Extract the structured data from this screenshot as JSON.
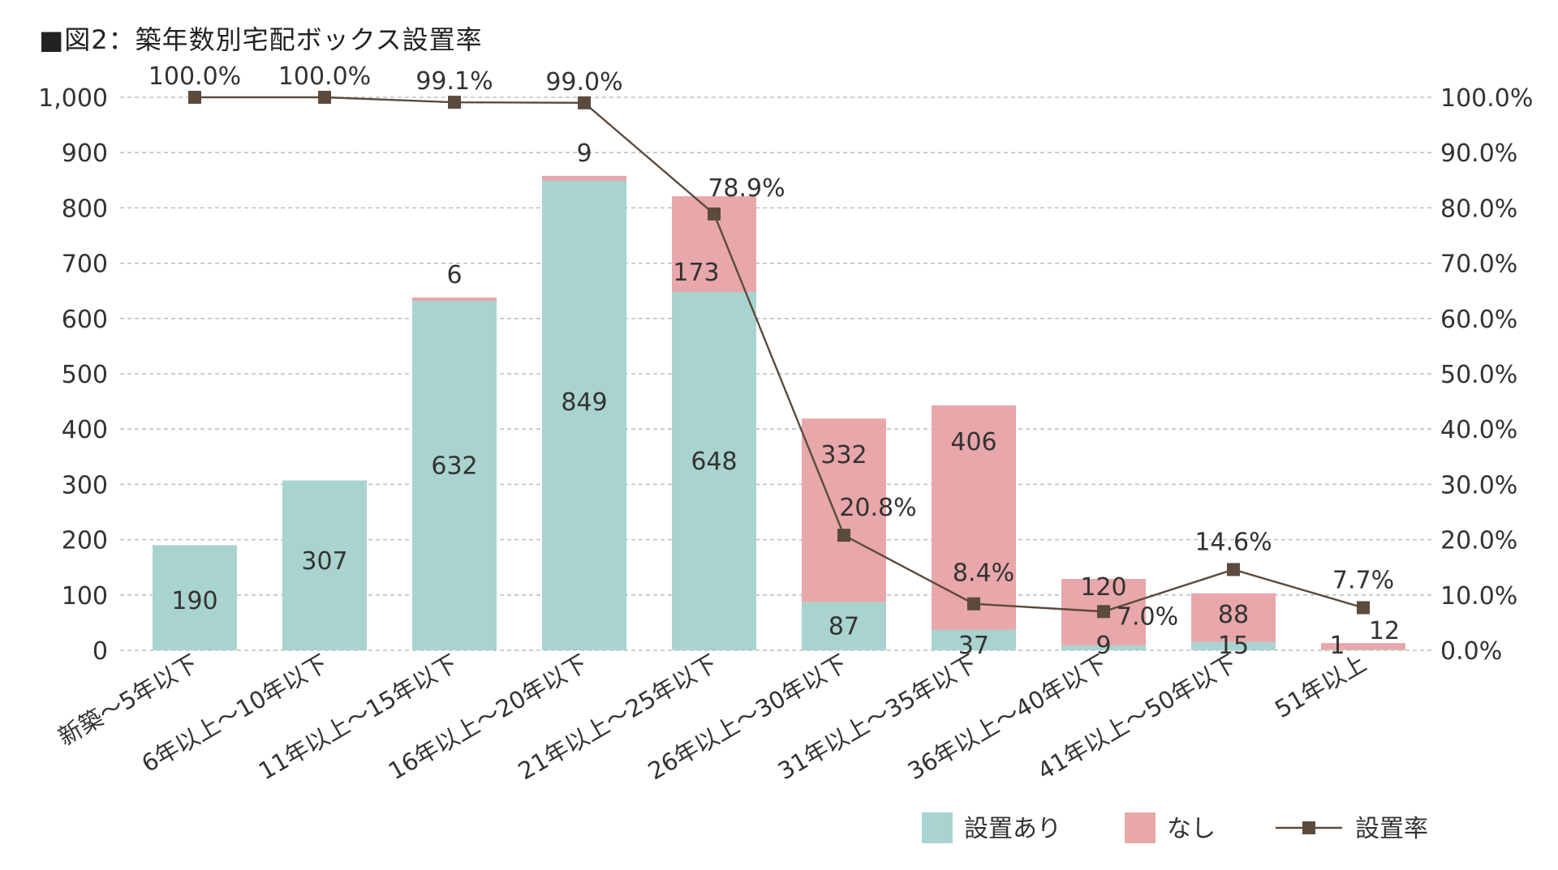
{
  "chart_data": {
    "type": "bar",
    "stacked": true,
    "title": "■図2：築年数別宅配ボックス設置率",
    "categories": [
      "新築～5年以下",
      "6年以上～10年以下",
      "11年以上～15年以下",
      "16年以上～20年以下",
      "21年以上～25年以下",
      "26年以上～30年以下",
      "31年以上～35年以下",
      "36年以上～40年以下",
      "41年以上～50年以下",
      "51年以上"
    ],
    "series": [
      {
        "name": "設置あり",
        "type": "bar",
        "color": "#a9d3cf",
        "values": [
          190,
          307,
          632,
          849,
          648,
          87,
          37,
          9,
          15,
          1
        ],
        "labels": [
          "190",
          "307",
          "632",
          "849",
          "648",
          "87",
          "37",
          "9",
          "15",
          "1"
        ]
      },
      {
        "name": "なし",
        "type": "bar",
        "color": "#e8a7aa",
        "values": [
          0,
          0,
          6,
          9,
          173,
          332,
          406,
          120,
          88,
          12
        ],
        "labels": [
          "",
          "",
          "6",
          "9",
          "173",
          "332",
          "406",
          "120",
          "88",
          "12"
        ]
      },
      {
        "name": "設置率",
        "type": "line",
        "axis": "right",
        "color": "#5b4a3e",
        "values": [
          100.0,
          100.0,
          99.1,
          99.0,
          78.9,
          20.8,
          8.4,
          7.0,
          14.6,
          7.7
        ],
        "labels": [
          "100.0%",
          "100.0%",
          "99.1%",
          "99.0%",
          "78.9%",
          "20.8%",
          "8.4%",
          "7.0%",
          "14.6%",
          "7.7%"
        ]
      }
    ],
    "y_left": {
      "min": 0,
      "max": 1000,
      "ticks": [
        "0",
        "100",
        "200",
        "300",
        "400",
        "500",
        "600",
        "700",
        "800",
        "900",
        "1,000"
      ]
    },
    "y_right": {
      "min": 0,
      "max": 100,
      "ticks": [
        "0.0%",
        "10.0%",
        "20.0%",
        "30.0%",
        "40.0%",
        "50.0%",
        "60.0%",
        "70.0%",
        "80.0%",
        "90.0%",
        "100.0%"
      ]
    },
    "grid": true,
    "legend": "bottom-right",
    "legend_items": [
      "設置あり",
      "なし",
      "設置率"
    ]
  }
}
